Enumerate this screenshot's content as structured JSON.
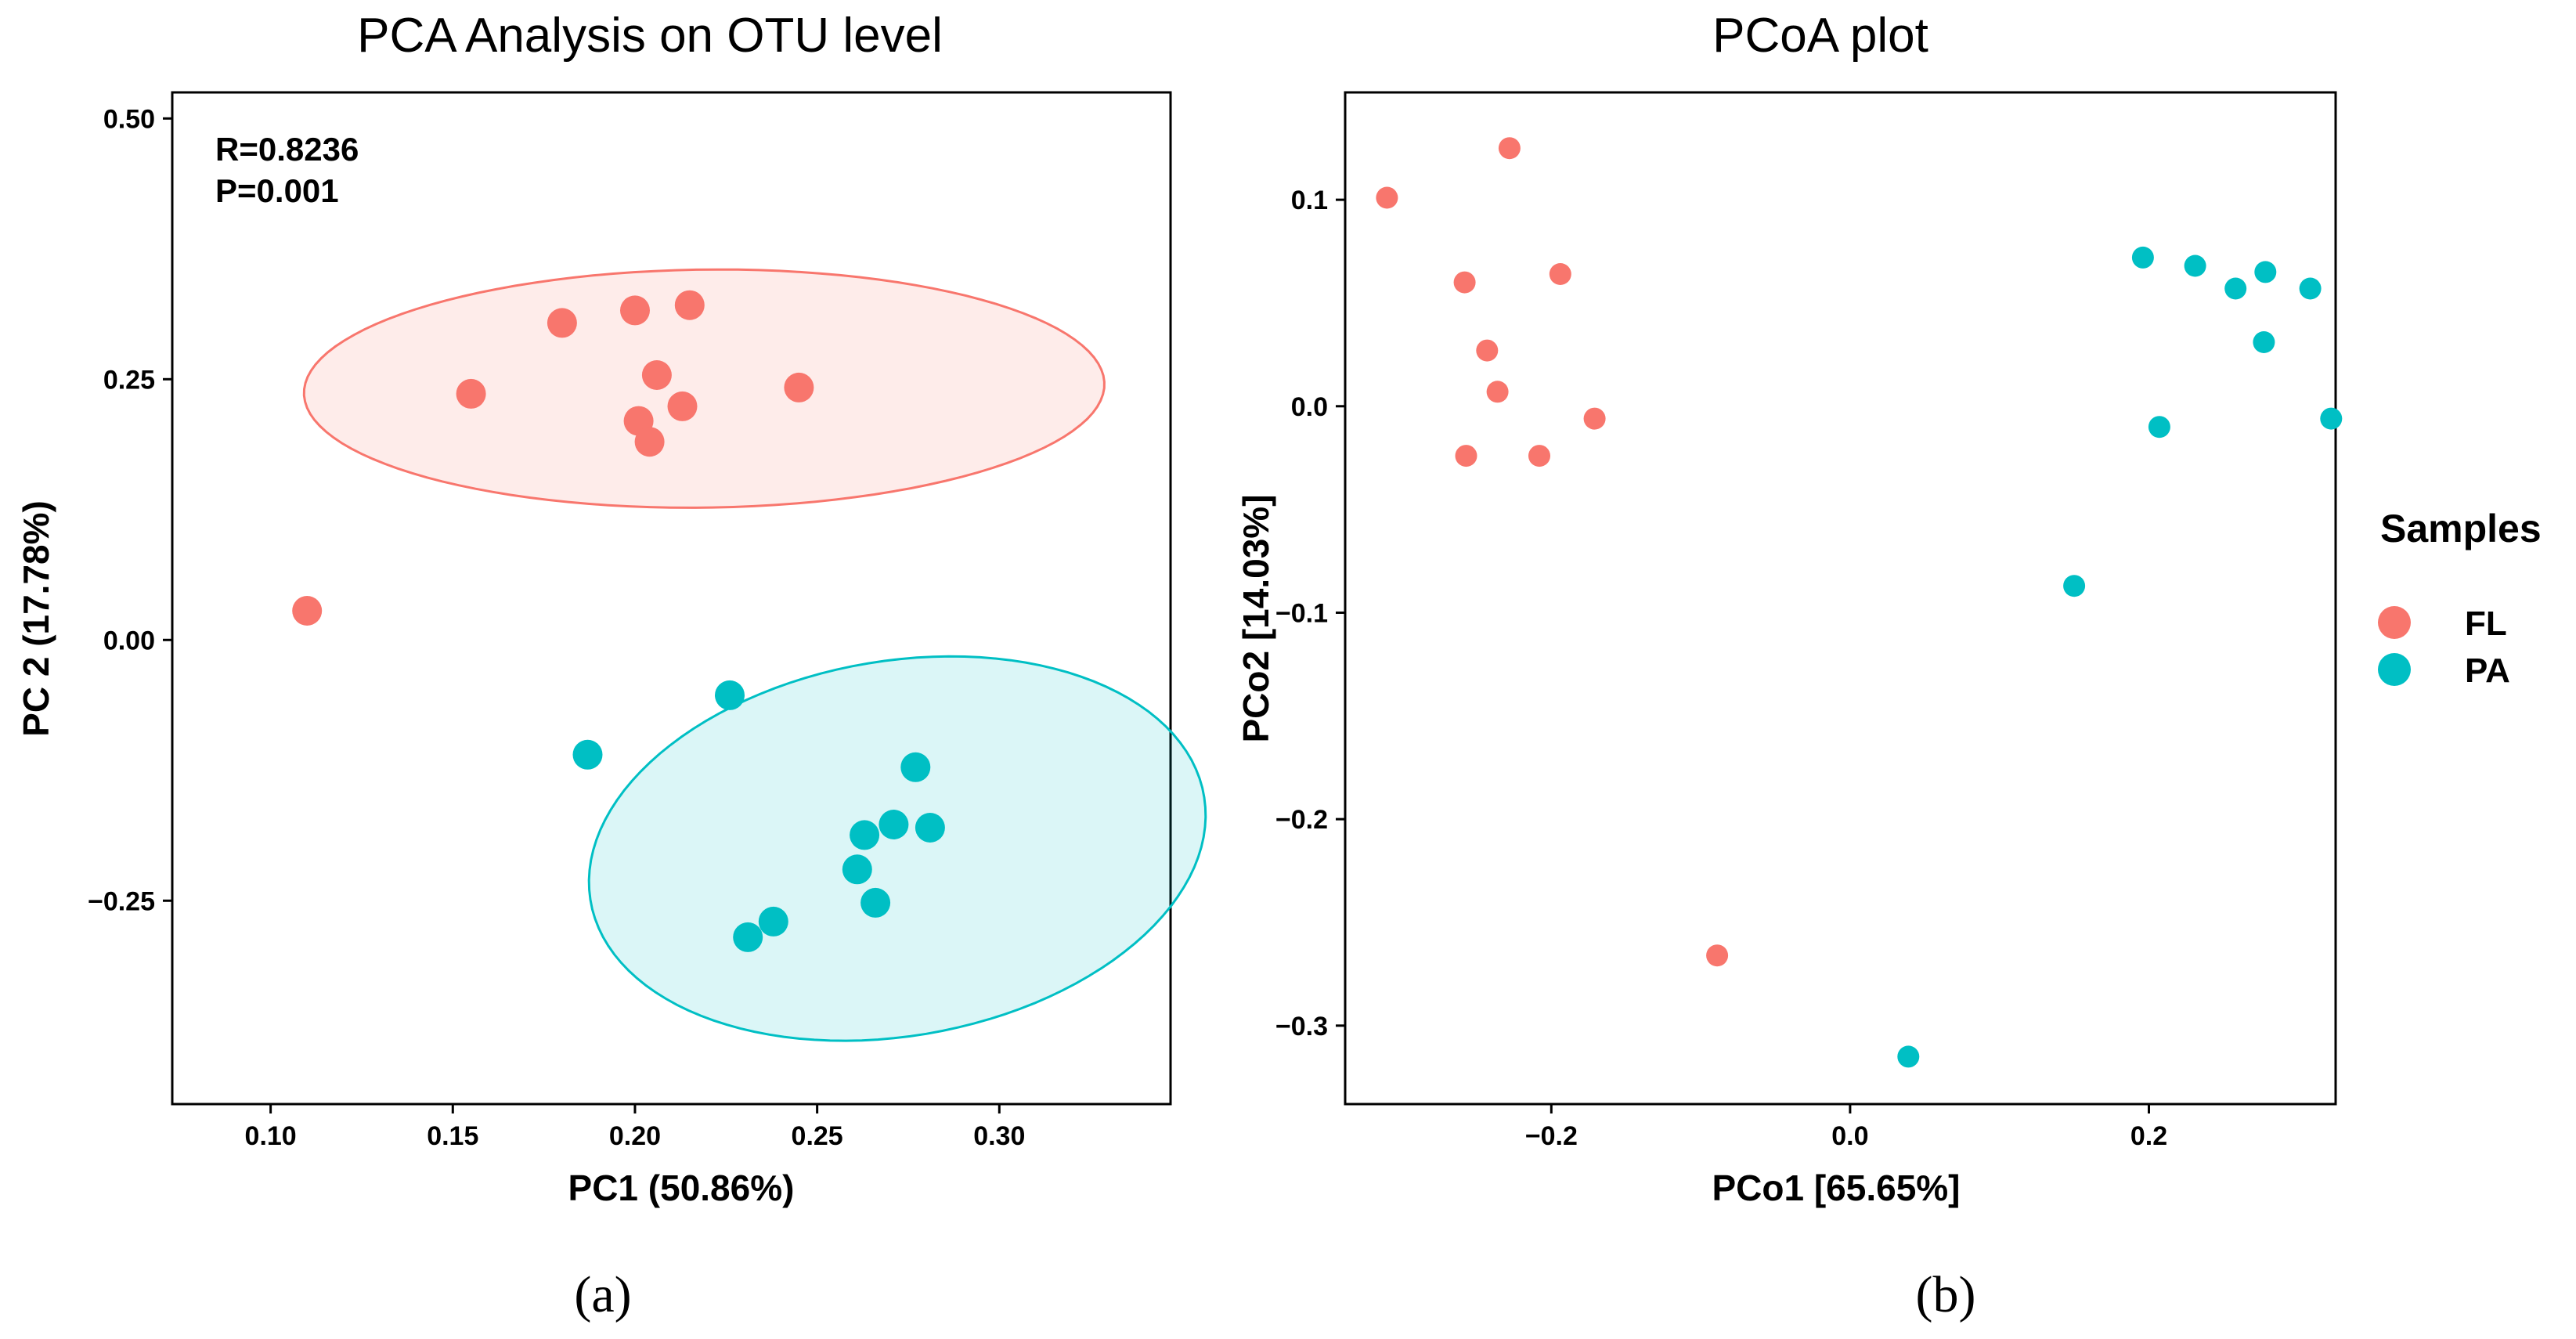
{
  "colors": {
    "FL": "#F8766D",
    "PA": "#00BFC4"
  },
  "legend": {
    "title": "Samples",
    "items": [
      {
        "label": "FL",
        "color": "#F8766D"
      },
      {
        "label": "PA",
        "color": "#00BFC4"
      }
    ]
  },
  "panel_labels": [
    "(a)",
    "(b)"
  ],
  "chart_data": [
    {
      "type": "scatter",
      "title": "PCA Analysis on OTU level",
      "xlabel": "PC1 (50.86%)",
      "ylabel": "PC 2 (17.78%)",
      "xlim": [
        0.073,
        0.347
      ],
      "ylim": [
        -0.445,
        0.525
      ],
      "xticks": [
        0.1,
        0.15,
        0.2,
        0.25,
        0.3
      ],
      "xtick_labels": [
        "0.10",
        "0.15",
        "0.20",
        "0.25",
        "0.30"
      ],
      "yticks": [
        -0.25,
        0.0,
        0.25,
        0.5
      ],
      "ytick_labels": [
        "−0.25",
        "0.00",
        "0.25",
        "0.50"
      ],
      "annotations": [
        "R=0.8236",
        "P=0.001"
      ],
      "grid": false,
      "series": [
        {
          "name": "FL",
          "color": "#F8766D",
          "points": [
            [
              0.11,
              0.028
            ],
            [
              0.155,
              0.236
            ],
            [
              0.18,
              0.304
            ],
            [
              0.2,
              0.316
            ],
            [
              0.215,
              0.321
            ],
            [
              0.206,
              0.254
            ],
            [
              0.201,
              0.21
            ],
            [
              0.213,
              0.224
            ],
            [
              0.204,
              0.19
            ],
            [
              0.245,
              0.242
            ]
          ],
          "ellipse": {
            "cx": 0.219,
            "cy": 0.241,
            "rx": 0.109,
            "ry": 0.115,
            "rotate": -0.38
          }
        },
        {
          "name": "PA",
          "color": "#00BFC4",
          "points": [
            [
              0.187,
              -0.11
            ],
            [
              0.226,
              -0.053
            ],
            [
              0.277,
              -0.122
            ],
            [
              0.271,
              -0.177
            ],
            [
              0.263,
              -0.187
            ],
            [
              0.281,
              -0.18
            ],
            [
              0.261,
              -0.22
            ],
            [
              0.266,
              -0.252
            ],
            [
              0.238,
              -0.27
            ],
            [
              0.231,
              -0.285
            ]
          ],
          "ellipse": {
            "cx": 0.272,
            "cy": -0.2,
            "rx": 0.083,
            "ry": 0.185,
            "rotate": -0.1
          }
        }
      ]
    },
    {
      "type": "scatter",
      "title": "PCoA plot",
      "xlabel": "PCo1 [65.65%]",
      "ylabel": "PCo2 [14.03%]",
      "xlim": [
        -0.338,
        0.325
      ],
      "ylim": [
        -0.338,
        0.152
      ],
      "xticks": [
        -0.2,
        0.0,
        0.2
      ],
      "xtick_labels": [
        "−0.2",
        "0.0",
        "0.2"
      ],
      "yticks": [
        -0.3,
        -0.2,
        -0.1,
        0.0,
        0.1
      ],
      "ytick_labels": [
        "−0.3",
        "−0.2",
        "−0.1",
        "0.0",
        "0.1"
      ],
      "grid": false,
      "series": [
        {
          "name": "FL",
          "color": "#F8766D",
          "points": [
            [
              -0.31,
              0.101
            ],
            [
              -0.228,
              0.125
            ],
            [
              -0.258,
              0.06
            ],
            [
              -0.194,
              0.064
            ],
            [
              -0.243,
              0.027
            ],
            [
              -0.236,
              0.007
            ],
            [
              -0.171,
              -0.006
            ],
            [
              -0.257,
              -0.024
            ],
            [
              -0.208,
              -0.024
            ],
            [
              -0.089,
              -0.266
            ]
          ]
        },
        {
          "name": "PA",
          "color": "#00BFC4",
          "points": [
            [
              0.196,
              0.072
            ],
            [
              0.231,
              0.068
            ],
            [
              0.278,
              0.065
            ],
            [
              0.258,
              0.057
            ],
            [
              0.308,
              0.057
            ],
            [
              0.277,
              0.031
            ],
            [
              0.322,
              -0.006
            ],
            [
              0.207,
              -0.01
            ],
            [
              0.15,
              -0.087
            ],
            [
              0.039,
              -0.315
            ]
          ]
        }
      ]
    }
  ]
}
